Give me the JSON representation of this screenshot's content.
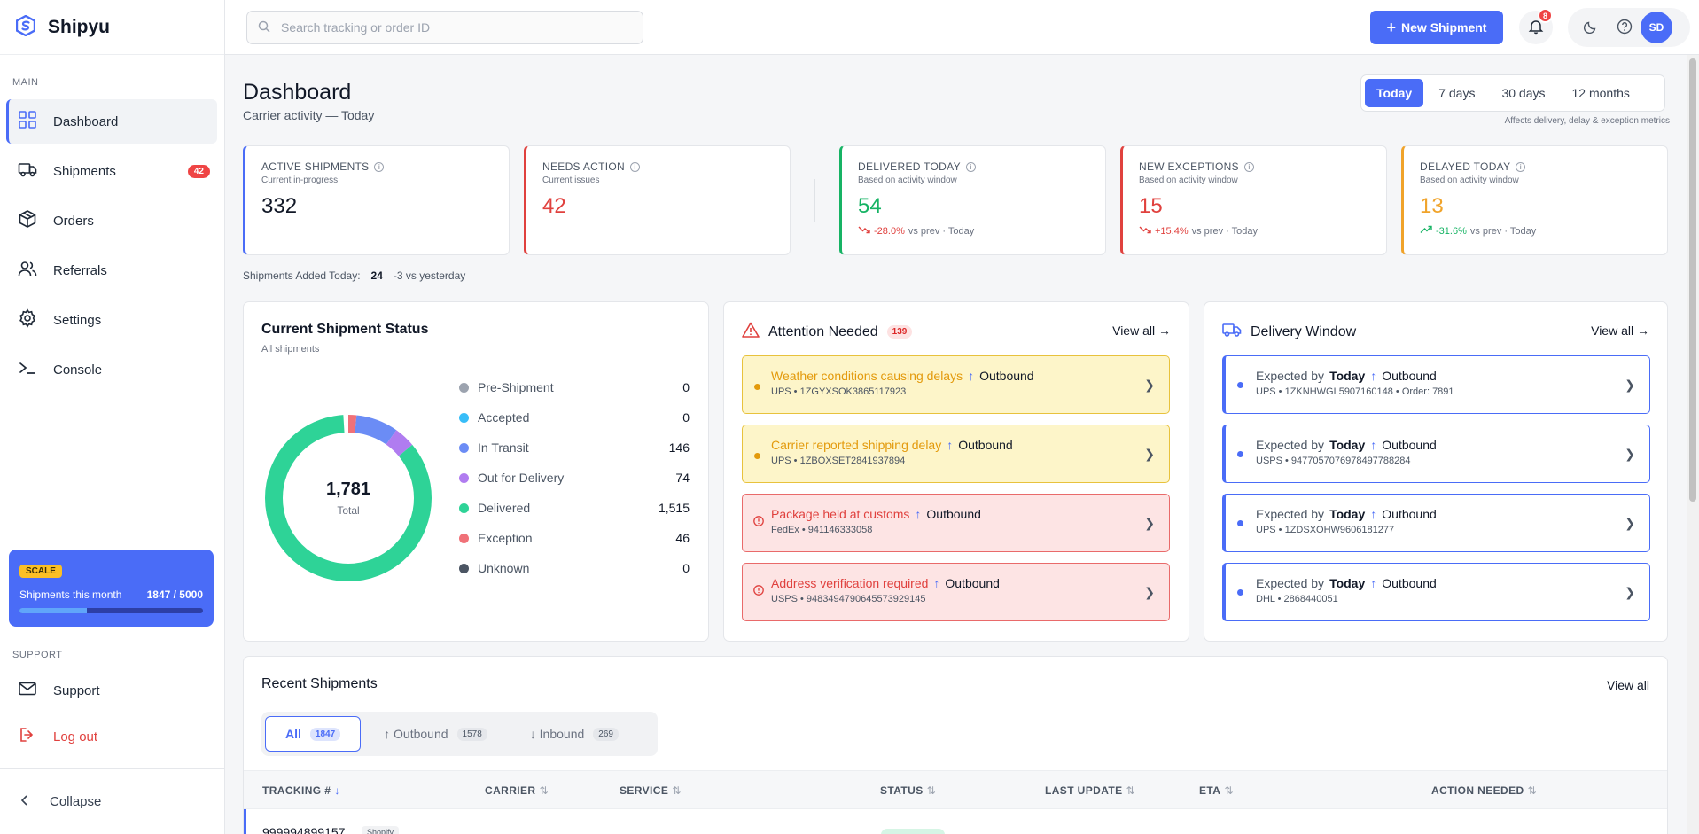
{
  "app": {
    "name": "Shipyu"
  },
  "sidebar": {
    "main_label": "MAIN",
    "items": [
      {
        "label": "Dashboard",
        "icon": "grid-icon",
        "active": true
      },
      {
        "label": "Shipments",
        "icon": "truck-icon",
        "badge": "42"
      },
      {
        "label": "Orders",
        "icon": "box-icon"
      },
      {
        "label": "Referrals",
        "icon": "users-icon"
      },
      {
        "label": "Settings",
        "icon": "gear-icon"
      },
      {
        "label": "Console",
        "icon": "terminal-icon"
      }
    ],
    "plan": {
      "tag": "SCALE",
      "label": "Shipments this month",
      "usage": "1847 / 5000",
      "fraction": 0.369
    },
    "support_label": "SUPPORT",
    "support_items": [
      {
        "label": "Support",
        "icon": "mail-icon"
      },
      {
        "label": "Log out",
        "icon": "logout-icon",
        "color": "#e0413e"
      }
    ],
    "collapse_label": "Collapse"
  },
  "topbar": {
    "search_placeholder": "Search tracking or order ID",
    "new_button": "New Shipment",
    "notification_count": "8",
    "avatar_initials": "SD"
  },
  "header": {
    "title": "Dashboard",
    "subtitle": "Carrier activity — Today",
    "ranges": [
      "Today",
      "7 days",
      "30 days",
      "12 months"
    ],
    "active_range": "Today",
    "range_note": "Affects delivery, delay & exception metrics"
  },
  "kpis": [
    {
      "label": "ACTIVE SHIPMENTS",
      "sub": "Current in-progress",
      "value": "332",
      "accent": "#4a6cf7",
      "value_color": "#111827"
    },
    {
      "label": "NEEDS ACTION",
      "sub": "Current issues",
      "value": "42",
      "accent": "#e0413e",
      "value_color": "#e0413e"
    },
    {
      "label": "DELIVERED TODAY",
      "sub": "Based on activity window",
      "value": "54",
      "accent": "#16b364",
      "value_color": "#16b364",
      "change": "-28.0%",
      "change_color": "#e0413e",
      "trend_text": "vs prev · Today"
    },
    {
      "label": "NEW EXCEPTIONS",
      "sub": "Based on activity window",
      "value": "15",
      "accent": "#e0413e",
      "value_color": "#e0413e",
      "change": "+15.4%",
      "change_color": "#e0413e",
      "trend_text": "vs prev · Today"
    },
    {
      "label": "DELAYED TODAY",
      "sub": "Based on activity window",
      "value": "13",
      "accent": "#f0a32a",
      "value_color": "#f0a32a",
      "change": "-31.6%",
      "change_color": "#16b364",
      "trend_text": "vs prev · Today"
    }
  ],
  "added_today": {
    "label": "Shipments Added Today:",
    "value": "24",
    "delta": "-3 vs yesterday"
  },
  "status_panel": {
    "title": "Current Shipment Status",
    "subtitle": "All shipments",
    "total": "1,781",
    "total_label": "Total",
    "legend": [
      {
        "label": "Pre-Shipment",
        "value": "0",
        "color": "#9ca3af"
      },
      {
        "label": "Accepted",
        "value": "0",
        "color": "#38bdf8"
      },
      {
        "label": "In Transit",
        "value": "146",
        "color": "#6b8cf5"
      },
      {
        "label": "Out for Delivery",
        "value": "74",
        "color": "#b07cf0"
      },
      {
        "label": "Delivered",
        "value": "1,515",
        "color": "#2ed397"
      },
      {
        "label": "Exception",
        "value": "46",
        "color": "#f07178"
      },
      {
        "label": "Unknown",
        "value": "0",
        "color": "#4b5563"
      }
    ]
  },
  "chart_data": {
    "type": "pie",
    "categories": [
      "Pre-Shipment",
      "Accepted",
      "In Transit",
      "Out for Delivery",
      "Delivered",
      "Exception",
      "Unknown"
    ],
    "values": [
      0,
      0,
      146,
      74,
      1515,
      46,
      0
    ]
  },
  "attention_panel": {
    "title": "Attention Needed",
    "count": "139",
    "view_all": "View all →",
    "items": [
      {
        "kind": "warn",
        "title": "Weather conditions causing delays",
        "direction": "Outbound",
        "detail": "UPS • 1ZGYXSOK3865117923"
      },
      {
        "kind": "warn",
        "title": "Carrier reported shipping delay",
        "direction": "Outbound",
        "detail": "UPS • 1ZBOXSET2841937894"
      },
      {
        "kind": "err",
        "title": "Package held at customs",
        "direction": "Outbound",
        "detail": "FedEx • 941146333058"
      },
      {
        "kind": "err",
        "title": "Address verification required",
        "direction": "Outbound",
        "detail": "USPS • 9483494790645573929145"
      }
    ]
  },
  "delivery_panel": {
    "title": "Delivery Window",
    "view_all": "View all →",
    "items": [
      {
        "prefix": "Expected by",
        "when": "Today",
        "direction": "Outbound",
        "detail": "UPS • 1ZKNHWGL5907160148 • Order: 7891"
      },
      {
        "prefix": "Expected by",
        "when": "Today",
        "direction": "Outbound",
        "detail": "USPS • 9477057076978497788284"
      },
      {
        "prefix": "Expected by",
        "when": "Today",
        "direction": "Outbound",
        "detail": "UPS • 1ZDSXOHW9606181277"
      },
      {
        "prefix": "Expected by",
        "when": "Today",
        "direction": "Outbound",
        "detail": "DHL • 2868440051"
      }
    ]
  },
  "recent": {
    "title": "Recent Shipments",
    "view_all": "View all",
    "tabs": [
      {
        "label": "All",
        "count": "1847",
        "active": true
      },
      {
        "label": "↑ Outbound",
        "count": "1578"
      },
      {
        "label": "↓ Inbound",
        "count": "269"
      }
    ],
    "columns": [
      "TRACKING #",
      "CARRIER",
      "SERVICE",
      "STATUS",
      "LAST UPDATE",
      "ETA",
      "ACTION NEEDED"
    ],
    "rows": [
      {
        "tracking": "999994899157",
        "source": "Shopify"
      }
    ]
  }
}
